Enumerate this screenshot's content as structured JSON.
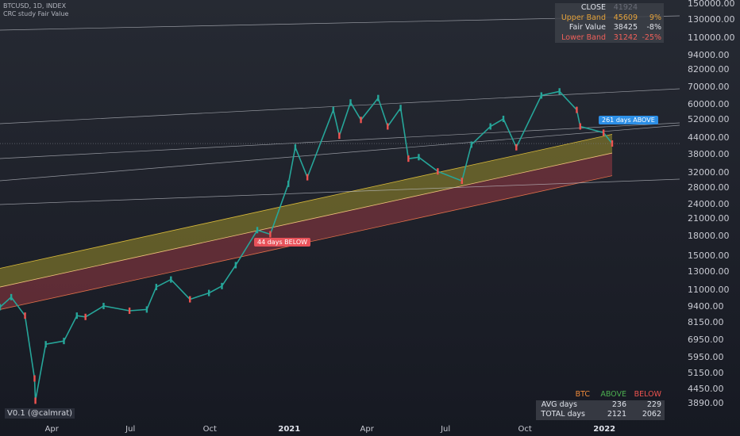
{
  "header": {
    "symbol": "BTCUSD, 1D, INDEX",
    "study": "CRC study Fair Value"
  },
  "version_label": "V0.1 (@calmrat)",
  "stats_table": {
    "header": [
      "CLOSE",
      "41924"
    ],
    "rows": [
      {
        "label": "Upper Band",
        "value": "45609",
        "pct": "9%",
        "color": "#e5a23a"
      },
      {
        "label": "Fair Value",
        "value": "38425",
        "pct": "-8%",
        "color": "#e0e3eb"
      },
      {
        "label": "Lower Band",
        "value": "31242",
        "pct": "-25%",
        "color": "#f0605a"
      }
    ]
  },
  "days_table": {
    "header": [
      "BTC",
      "ABOVE",
      "BELOW"
    ],
    "rows": [
      {
        "label": "AVG days",
        "above": "236",
        "below": "229"
      },
      {
        "label": "TOTAL days",
        "above": "2121",
        "below": "2062"
      }
    ]
  },
  "annotations": [
    {
      "text": "44 days BELOW",
      "color": "#e8525a"
    },
    {
      "text": "261 days ABOVE",
      "color": "#2d8fe6"
    }
  ],
  "colors": {
    "upper_band": "#b5a72a",
    "lower_band": "#b23d46",
    "candle_up": "#26a69a",
    "candle_down": "#ef5350",
    "price_line": "#f0f3fa"
  },
  "chart_data": {
    "type": "line",
    "title": "BTCUSD, 1D, INDEX",
    "y_scale": "log",
    "ylim": [
      3600,
      150000
    ],
    "y_ticks": [
      "150000.00",
      "130000.00",
      "110000.00",
      "94000.00",
      "82000.00",
      "70000.00",
      "60000.00",
      "52000.00",
      "44000.00",
      "38000.00",
      "32000.00",
      "28000.00",
      "24000.00",
      "21000.00",
      "18000.00",
      "15000.00",
      "13000.00",
      "11000.00",
      "9400.00",
      "8150.00",
      "6950.00",
      "5950.00",
      "5150.00",
      "4450.00",
      "3890.00"
    ],
    "x_ticks": [
      "Apr",
      "Jul",
      "Oct",
      "2021",
      "Apr",
      "Jul",
      "Oct",
      "2022"
    ],
    "x_range": [
      "2020-02-01",
      "2022-03-31"
    ],
    "series": [
      {
        "values": [
          [
            "2020-02-01",
            9400
          ],
          [
            "2020-02-14",
            10300
          ],
          [
            "2020-03-01",
            8700
          ],
          [
            "2020-03-12",
            4900
          ],
          [
            "2020-03-13",
            4000
          ],
          [
            "2020-03-25",
            6700
          ],
          [
            "2020-04-15",
            6900
          ],
          [
            "2020-04-30",
            8700
          ],
          [
            "2020-05-10",
            8600
          ],
          [
            "2020-05-31",
            9500
          ],
          [
            "2020-06-30",
            9100
          ],
          [
            "2020-07-20",
            9200
          ],
          [
            "2020-07-31",
            11300
          ],
          [
            "2020-08-17",
            12100
          ],
          [
            "2020-09-08",
            10100
          ],
          [
            "2020-09-30",
            10700
          ],
          [
            "2020-10-15",
            11400
          ],
          [
            "2020-10-31",
            13800
          ],
          [
            "2020-11-25",
            19000
          ],
          [
            "2020-12-10",
            18300
          ],
          [
            "2020-12-31",
            29000
          ],
          [
            "2021-01-08",
            40500
          ],
          [
            "2021-01-22",
            30800
          ],
          [
            "2021-02-21",
            57000
          ],
          [
            "2021-02-28",
            45000
          ],
          [
            "2021-03-13",
            61000
          ],
          [
            "2021-03-25",
            52000
          ],
          [
            "2021-04-14",
            63500
          ],
          [
            "2021-04-25",
            49000
          ],
          [
            "2021-05-10",
            58000
          ],
          [
            "2021-05-19",
            36500
          ],
          [
            "2021-05-31",
            37000
          ],
          [
            "2021-06-22",
            32500
          ],
          [
            "2021-07-20",
            29800
          ],
          [
            "2021-07-31",
            41500
          ],
          [
            "2021-08-22",
            49000
          ],
          [
            "2021-09-06",
            52500
          ],
          [
            "2021-09-21",
            40500
          ],
          [
            "2021-10-20",
            65000
          ],
          [
            "2021-11-10",
            67500
          ],
          [
            "2021-11-30",
            57000
          ],
          [
            "2021-12-04",
            49000
          ],
          [
            "2021-12-31",
            46300
          ],
          [
            "2022-01-10",
            41924
          ]
        ]
      }
    ],
    "bands": {
      "upper_band": [
        [
          "2020-02-01",
          13400
        ],
        [
          "2022-01-10",
          45609
        ]
      ],
      "fair_value": [
        [
          "2020-02-01",
          11300
        ],
        [
          "2022-01-10",
          38425
        ]
      ],
      "lower_band": [
        [
          "2020-02-01",
          9200
        ],
        [
          "2022-01-10",
          31242
        ]
      ]
    }
  }
}
